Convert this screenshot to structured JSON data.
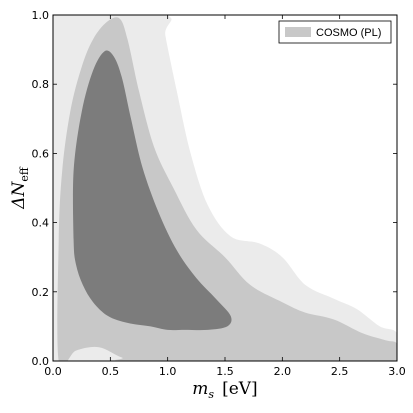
{
  "chart_data": {
    "type": "contour",
    "xlabel_symbol": "m",
    "xlabel_sub": "s",
    "xlabel_unit": "[eV]",
    "ylabel_prefix": "ΔN",
    "ylabel_sub": "eff",
    "xlim": [
      0.0,
      3.0
    ],
    "ylim": [
      0.0,
      1.0
    ],
    "x_ticks": [
      0.0,
      0.5,
      1.0,
      1.5,
      2.0,
      2.5,
      3.0
    ],
    "x_tick_labels": [
      "0.0",
      "0.5",
      "1.0",
      "1.5",
      "2.0",
      "2.5",
      "3.0"
    ],
    "y_ticks": [
      0.0,
      0.2,
      0.4,
      0.6,
      0.8,
      1.0
    ],
    "y_tick_labels": [
      "0.0",
      "0.2",
      "0.4",
      "0.6",
      "0.8",
      "1.0"
    ],
    "grid": false,
    "legend": {
      "position": "top-right",
      "label": "COSMO (PL)",
      "color": "#c8c8c8"
    },
    "series": [
      {
        "level": "outer",
        "color": "#ebebeb",
        "points": [
          [
            0.0,
            1.0
          ],
          [
            0.96,
            1.0
          ],
          [
            0.98,
            0.94
          ],
          [
            1.08,
            0.78
          ],
          [
            1.2,
            0.6
          ],
          [
            1.35,
            0.45
          ],
          [
            1.55,
            0.36
          ],
          [
            1.8,
            0.34
          ],
          [
            2.0,
            0.3
          ],
          [
            2.2,
            0.22
          ],
          [
            2.45,
            0.18
          ],
          [
            2.65,
            0.15
          ],
          [
            2.85,
            0.1
          ],
          [
            3.0,
            0.08
          ],
          [
            3.0,
            0.0
          ],
          [
            0.0,
            0.0
          ]
        ]
      },
      {
        "level": "middle",
        "color": "#c8c8c8",
        "points": [
          [
            0.05,
            0.0
          ],
          [
            0.05,
            0.35
          ],
          [
            0.08,
            0.55
          ],
          [
            0.15,
            0.72
          ],
          [
            0.25,
            0.85
          ],
          [
            0.35,
            0.93
          ],
          [
            0.47,
            0.98
          ],
          [
            0.58,
            0.99
          ],
          [
            0.65,
            0.93
          ],
          [
            0.75,
            0.78
          ],
          [
            0.88,
            0.62
          ],
          [
            1.05,
            0.5
          ],
          [
            1.25,
            0.38
          ],
          [
            1.5,
            0.3
          ],
          [
            1.72,
            0.22
          ],
          [
            2.0,
            0.17
          ],
          [
            2.2,
            0.14
          ],
          [
            2.45,
            0.12
          ],
          [
            2.7,
            0.08
          ],
          [
            2.9,
            0.06
          ],
          [
            3.0,
            0.05
          ],
          [
            3.0,
            0.0
          ],
          [
            0.75,
            0.0
          ],
          [
            0.6,
            0.01
          ],
          [
            0.4,
            0.04
          ],
          [
            0.2,
            0.03
          ]
        ]
      },
      {
        "level": "inner",
        "color": "#7c7c7c",
        "points": [
          [
            0.18,
            0.35
          ],
          [
            0.18,
            0.55
          ],
          [
            0.25,
            0.72
          ],
          [
            0.35,
            0.84
          ],
          [
            0.45,
            0.895
          ],
          [
            0.53,
            0.88
          ],
          [
            0.6,
            0.82
          ],
          [
            0.68,
            0.7
          ],
          [
            0.78,
            0.56
          ],
          [
            0.92,
            0.43
          ],
          [
            1.08,
            0.32
          ],
          [
            1.25,
            0.24
          ],
          [
            1.42,
            0.18
          ],
          [
            1.55,
            0.13
          ],
          [
            1.52,
            0.1
          ],
          [
            1.35,
            0.09
          ],
          [
            1.15,
            0.09
          ],
          [
            1.0,
            0.09
          ],
          [
            0.85,
            0.1
          ],
          [
            0.65,
            0.11
          ],
          [
            0.48,
            0.13
          ],
          [
            0.35,
            0.17
          ],
          [
            0.26,
            0.22
          ],
          [
            0.2,
            0.28
          ]
        ]
      }
    ]
  }
}
